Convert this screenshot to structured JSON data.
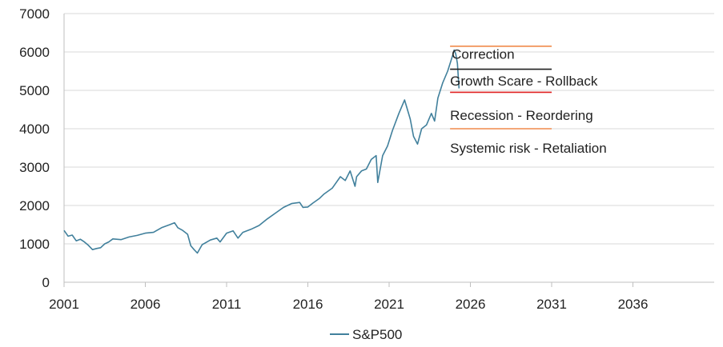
{
  "chart_data": {
    "type": "line",
    "title": "",
    "xlabel": "",
    "ylabel": "",
    "xlim": [
      2001,
      2041
    ],
    "ylim": [
      0,
      7000
    ],
    "x_ticks": [
      2001,
      2006,
      2011,
      2016,
      2021,
      2026,
      2031,
      2036
    ],
    "y_ticks": [
      0,
      1000,
      2000,
      3000,
      4000,
      5000,
      6000,
      7000
    ],
    "grid": "horizontal",
    "legend": "bottom-center",
    "series": [
      {
        "name": "S&P500",
        "color": "#41809c",
        "x": [
          2001.0,
          2001.25,
          2001.5,
          2001.75,
          2002.0,
          2002.25,
          2002.5,
          2002.75,
          2003.0,
          2003.25,
          2003.5,
          2003.75,
          2004.0,
          2004.5,
          2005.0,
          2005.5,
          2006.0,
          2006.5,
          2007.0,
          2007.5,
          2007.8,
          2008.0,
          2008.3,
          2008.6,
          2008.8,
          2009.0,
          2009.2,
          2009.5,
          2010.0,
          2010.4,
          2010.6,
          2011.0,
          2011.4,
          2011.7,
          2012.0,
          2012.5,
          2013.0,
          2013.5,
          2014.0,
          2014.5,
          2015.0,
          2015.5,
          2015.7,
          2016.0,
          2016.3,
          2016.7,
          2017.0,
          2017.5,
          2018.0,
          2018.3,
          2018.6,
          2018.9,
          2019.0,
          2019.3,
          2019.6,
          2019.9,
          2020.2,
          2020.3,
          2020.6,
          2020.9,
          2021.2,
          2021.6,
          2021.95,
          2022.3,
          2022.5,
          2022.75,
          2023.0,
          2023.3,
          2023.6,
          2023.8,
          2024.0,
          2024.3,
          2024.6,
          2024.9,
          2025.0,
          2025.1,
          2025.2,
          2025.3
        ],
        "values": [
          1350,
          1200,
          1230,
          1080,
          1120,
          1050,
          960,
          850,
          880,
          900,
          1000,
          1050,
          1130,
          1110,
          1180,
          1220,
          1280,
          1300,
          1420,
          1500,
          1550,
          1420,
          1350,
          1250,
          950,
          850,
          760,
          980,
          1100,
          1150,
          1050,
          1280,
          1340,
          1150,
          1300,
          1380,
          1480,
          1650,
          1800,
          1950,
          2050,
          2080,
          1950,
          1960,
          2060,
          2180,
          2300,
          2450,
          2750,
          2650,
          2900,
          2500,
          2750,
          2900,
          2950,
          3200,
          3300,
          2600,
          3300,
          3550,
          3950,
          4400,
          4750,
          4250,
          3800,
          3600,
          4000,
          4100,
          4400,
          4200,
          4800,
          5200,
          5500,
          5900,
          6050,
          5950,
          5700,
          5050
        ]
      }
    ],
    "reference_lines": [
      {
        "y": 6150,
        "color": "#f08a4b",
        "x_start": 2024.75,
        "x_end": 2031
      },
      {
        "y": 5550,
        "color": "#1f1f1f",
        "x_start": 2024.75,
        "x_end": 2031
      },
      {
        "y": 4950,
        "color": "#e02020",
        "x_start": 2024.75,
        "x_end": 2031
      },
      {
        "y": 4000,
        "color": "#f08a4b",
        "x_start": 2024.75,
        "x_end": 2031
      }
    ],
    "annotations": [
      {
        "text": "Correction",
        "x": 2024.85,
        "y": 5950
      },
      {
        "text": "Growth Scare - Rollback",
        "x": 2024.75,
        "y": 5250
      },
      {
        "text": "Recession - Reordering",
        "x": 2024.75,
        "y": 4350
      },
      {
        "text": "Systemic risk - Retaliation",
        "x": 2024.75,
        "y": 3500
      }
    ]
  }
}
